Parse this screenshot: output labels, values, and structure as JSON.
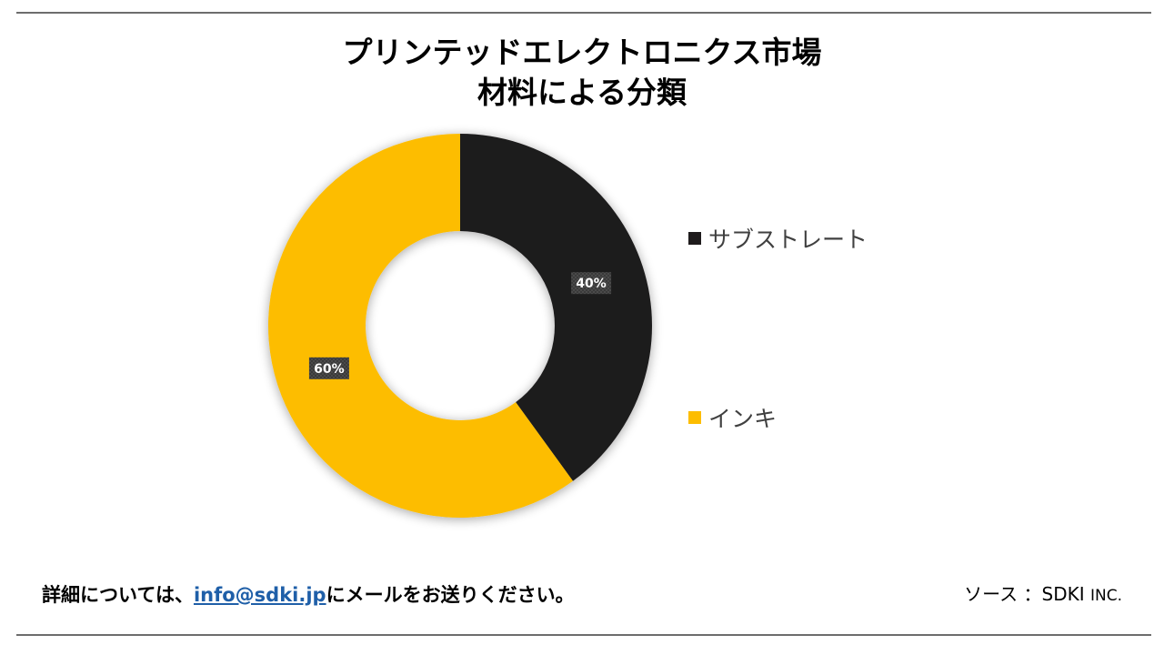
{
  "title": {
    "line1": "プリンテッドエレクトロニクス市場",
    "line2": "材料による分類"
  },
  "chart_data": {
    "type": "pie",
    "donut": true,
    "categories": [
      "サブストレート",
      "インキ"
    ],
    "values": [
      40,
      60
    ],
    "unit": "%",
    "data_labels": [
      "40%",
      "60%"
    ],
    "colors": [
      "#1e1b1c",
      "#fdbd00"
    ],
    "legend_placement": "right"
  },
  "legend": {
    "items": [
      {
        "label": "サブストレート",
        "color": "#1e1b1c"
      },
      {
        "label": "インキ",
        "color": "#fdbd00"
      }
    ]
  },
  "footer": {
    "contact_prefix": "詳細については、",
    "contact_email": "info@sdki.jp",
    "contact_suffix": "にメールをお送りください。",
    "source_label": "ソース ：",
    "source_name": "SDKI",
    "source_inc": "INC."
  }
}
